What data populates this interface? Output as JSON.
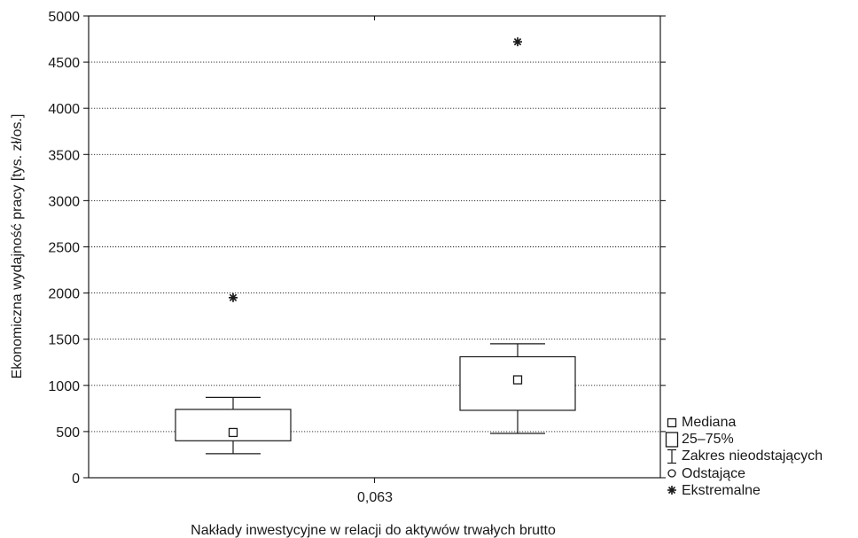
{
  "chart_data": {
    "type": "boxplot",
    "xlabel": "Nakłady inwestycyjne w relacji do aktywów trwałych brutto",
    "ylabel": "Ekonomiczna wydajność pracy [tys. zł/os.]",
    "ylim": [
      0,
      5000
    ],
    "yticks": [
      "0",
      "500",
      "1000",
      "1500",
      "2000",
      "2500",
      "3000",
      "3500",
      "4000",
      "4500",
      "5000"
    ],
    "threshold_label": "0,063",
    "grid": "horizontal-dotted",
    "legend_position": "right-bottom",
    "groups": [
      {
        "side": "below-threshold",
        "median": 490,
        "q1": 400,
        "q3": 740,
        "whisker_low": 260,
        "whisker_high": 870,
        "extremes": [
          1950
        ]
      },
      {
        "side": "above-threshold",
        "median": 1060,
        "q1": 730,
        "q3": 1310,
        "whisker_low": 480,
        "whisker_high": 1450,
        "extremes": [
          4720
        ]
      }
    ]
  },
  "legend": {
    "items": [
      {
        "symbol": "square-small",
        "label": "Mediana"
      },
      {
        "symbol": "rectangle",
        "label": "25–75%"
      },
      {
        "symbol": "whisker",
        "label": "Zakres nieodstających"
      },
      {
        "symbol": "circle",
        "label": "Odstające"
      },
      {
        "symbol": "asterisk",
        "label": "Ekstremalne"
      }
    ]
  },
  "colors": {
    "ink": "#1a1a1a",
    "background": "#ffffff"
  }
}
